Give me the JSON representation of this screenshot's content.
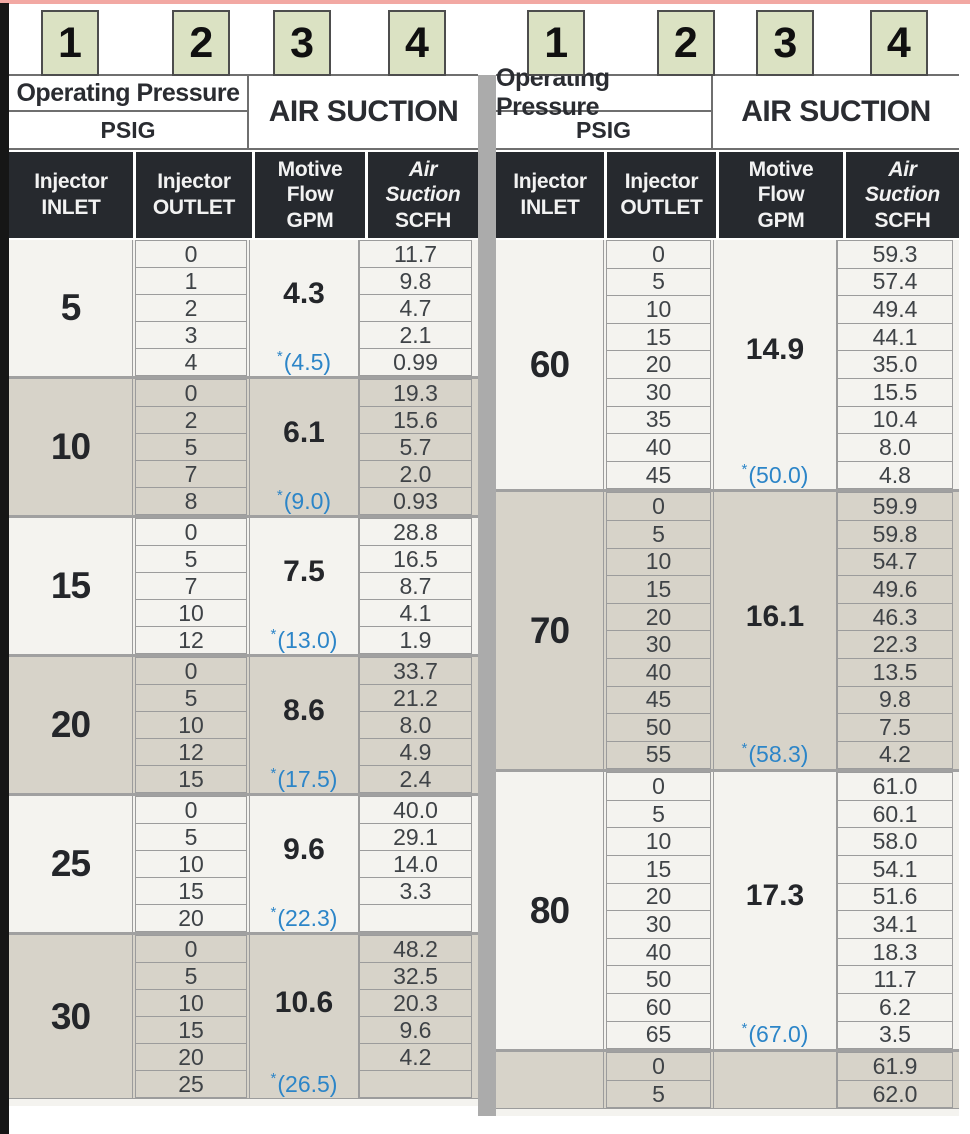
{
  "badges": [
    "1",
    "2",
    "3",
    "4"
  ],
  "column_groups": {
    "operating_pressure": "Operating Pressure",
    "operating_pressure_unit": "PSIG",
    "air_suction": "AIR SUCTION"
  },
  "column_headers": [
    {
      "lines": [
        "Injector",
        "INLET"
      ]
    },
    {
      "lines": [
        "Injector",
        "OUTLET"
      ]
    },
    {
      "lines": [
        "Motive",
        "Flow",
        "GPM"
      ]
    },
    {
      "lines": [
        "Air",
        "Suction",
        "SCFH"
      ]
    }
  ],
  "colors": {
    "badge_green": "#dbe2c3",
    "header_dark": "#26292e",
    "block_light": "#f4f3ef",
    "block_gray": "#d7d3c9",
    "note_blue": "#2c85c8",
    "divider_gray": "#ababab",
    "top_line_pink": "#f2a8a3",
    "left_bar_black": "#161616"
  },
  "tables": [
    {
      "id": "left",
      "blocks": [
        {
          "inlet": "5",
          "shade": "light",
          "gpm": "4.3",
          "note_star": "*",
          "note_value": "(4.5)",
          "rows": [
            [
              "0",
              "11.7"
            ],
            [
              "1",
              "9.8"
            ],
            [
              "2",
              "4.7"
            ],
            [
              "3",
              "2.1"
            ],
            [
              "4",
              "0.99"
            ]
          ]
        },
        {
          "inlet": "10",
          "shade": "gray",
          "gpm": "6.1",
          "note_star": "*",
          "note_value": "(9.0)",
          "rows": [
            [
              "0",
              "19.3"
            ],
            [
              "2",
              "15.6"
            ],
            [
              "5",
              "5.7"
            ],
            [
              "7",
              "2.0"
            ],
            [
              "8",
              "0.93"
            ]
          ]
        },
        {
          "inlet": "15",
          "shade": "light",
          "gpm": "7.5",
          "note_star": "*",
          "note_value": "(13.0)",
          "rows": [
            [
              "0",
              "28.8"
            ],
            [
              "5",
              "16.5"
            ],
            [
              "7",
              "8.7"
            ],
            [
              "10",
              "4.1"
            ],
            [
              "12",
              "1.9"
            ]
          ]
        },
        {
          "inlet": "20",
          "shade": "gray",
          "gpm": "8.6",
          "note_star": "*",
          "note_value": "(17.5)",
          "rows": [
            [
              "0",
              "33.7"
            ],
            [
              "5",
              "21.2"
            ],
            [
              "10",
              "8.0"
            ],
            [
              "12",
              "4.9"
            ],
            [
              "15",
              "2.4"
            ]
          ]
        },
        {
          "inlet": "25",
          "shade": "light",
          "gpm": "9.6",
          "note_star": "*",
          "note_value": "(22.3)",
          "rows": [
            [
              "0",
              "40.0"
            ],
            [
              "5",
              "29.1"
            ],
            [
              "10",
              "14.0"
            ],
            [
              "15",
              "3.3"
            ],
            [
              "20",
              ""
            ]
          ]
        },
        {
          "inlet": "30",
          "shade": "gray",
          "gpm": "10.6",
          "note_star": "*",
          "note_value": "(26.5)",
          "rows": [
            [
              "0",
              "48.2"
            ],
            [
              "5",
              "32.5"
            ],
            [
              "10",
              "20.3"
            ],
            [
              "15",
              "9.6"
            ],
            [
              "20",
              "4.2"
            ],
            [
              "25",
              ""
            ]
          ]
        }
      ]
    },
    {
      "id": "right",
      "blocks": [
        {
          "inlet": "60",
          "shade": "light",
          "gpm": "14.9",
          "note_star": "*",
          "note_value": "(50.0)",
          "rows": [
            [
              "0",
              "59.3"
            ],
            [
              "5",
              "57.4"
            ],
            [
              "10",
              "49.4"
            ],
            [
              "15",
              "44.1"
            ],
            [
              "20",
              "35.0"
            ],
            [
              "30",
              "15.5"
            ],
            [
              "35",
              "10.4"
            ],
            [
              "40",
              "8.0"
            ],
            [
              "45",
              "4.8"
            ]
          ]
        },
        {
          "inlet": "70",
          "shade": "gray",
          "gpm": "16.1",
          "note_star": "*",
          "note_value": "(58.3)",
          "rows": [
            [
              "0",
              "59.9"
            ],
            [
              "5",
              "59.8"
            ],
            [
              "10",
              "54.7"
            ],
            [
              "15",
              "49.6"
            ],
            [
              "20",
              "46.3"
            ],
            [
              "30",
              "22.3"
            ],
            [
              "40",
              "13.5"
            ],
            [
              "45",
              "9.8"
            ],
            [
              "50",
              "7.5"
            ],
            [
              "55",
              "4.2"
            ]
          ]
        },
        {
          "inlet": "80",
          "shade": "light",
          "gpm": "17.3",
          "note_star": "*",
          "note_value": "(67.0)",
          "rows": [
            [
              "0",
              "61.0"
            ],
            [
              "5",
              "60.1"
            ],
            [
              "10",
              "58.0"
            ],
            [
              "15",
              "54.1"
            ],
            [
              "20",
              "51.6"
            ],
            [
              "30",
              "34.1"
            ],
            [
              "40",
              "18.3"
            ],
            [
              "50",
              "11.7"
            ],
            [
              "60",
              "6.2"
            ],
            [
              "65",
              "3.5"
            ]
          ]
        },
        {
          "inlet": "",
          "shade": "gray",
          "gpm": "",
          "note_star": "",
          "note_value": "",
          "rows": [
            [
              "0",
              "61.9"
            ],
            [
              "5",
              "62.0"
            ]
          ]
        }
      ]
    }
  ]
}
